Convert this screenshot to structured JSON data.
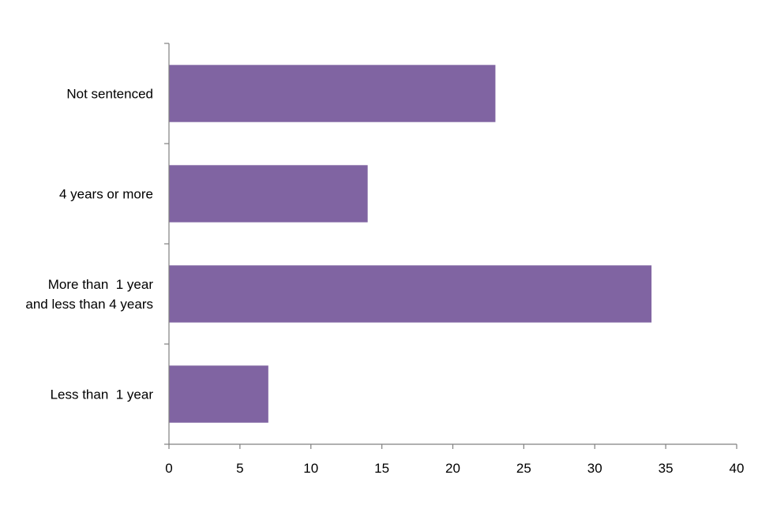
{
  "chart_data": {
    "type": "bar",
    "orientation": "horizontal",
    "title": "",
    "xlabel": "",
    "ylabel": "",
    "categories": [
      [
        "Not sentenced"
      ],
      [
        "4 years or more"
      ],
      [
        "More than  1 year",
        "and less than 4 years"
      ],
      [
        "Less than  1 year"
      ]
    ],
    "values": [
      23,
      14,
      34,
      7
    ],
    "xlim": [
      0,
      40
    ],
    "xticks": [
      "0",
      "5",
      "10",
      "15",
      "20",
      "25",
      "30",
      "35",
      "40"
    ],
    "grid": false,
    "legend": "none",
    "bar_color": "#8064A2"
  }
}
